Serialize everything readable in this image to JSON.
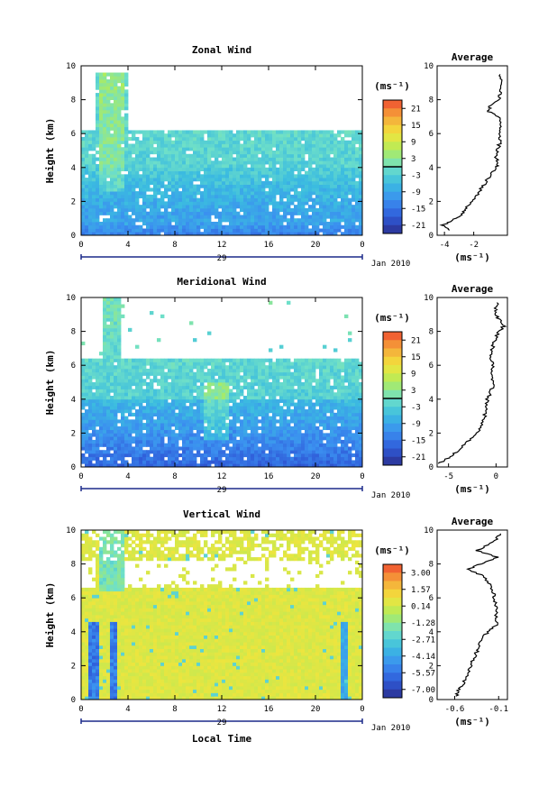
{
  "chart_data": [
    {
      "type": "heatmap",
      "title": "Zonal Wind",
      "ylabel": "Height (km)",
      "xlim": [
        0,
        24
      ],
      "ylim": [
        0,
        10
      ],
      "xticks": [
        "0",
        "4",
        "8",
        "12",
        "16",
        "20",
        "0"
      ],
      "yticks": [
        "0",
        "2",
        "4",
        "6",
        "8",
        "10"
      ],
      "date_day": "29",
      "date_label": "Jan 2010",
      "colorbar": {
        "unit": "(ms⁻¹)",
        "ticks": [
          "21",
          "15",
          "9",
          "3",
          "-3",
          "-9",
          "-15",
          "-21"
        ],
        "range": [
          -24,
          24
        ]
      },
      "profile": {
        "title": "Average",
        "xlabel": "(ms⁻¹)",
        "xticks": [
          "-4",
          "-2"
        ],
        "xlim": [
          -4.5,
          0.3
        ],
        "heights": [
          0.3,
          0.6,
          0.9,
          1.2,
          1.6,
          2.0,
          2.5,
          3.0,
          3.5,
          4.0,
          4.3,
          4.6,
          5.0,
          5.5,
          6.0,
          6.5,
          7.0,
          7.3,
          7.6,
          8.0,
          8.5,
          9.0,
          9.5
        ],
        "values": [
          -3.6,
          -4.1,
          -3.4,
          -2.9,
          -2.5,
          -2.1,
          -1.7,
          -1.3,
          -0.9,
          -0.5,
          -0.3,
          -0.5,
          -0.4,
          -0.2,
          -0.3,
          -0.1,
          -0.3,
          -1.0,
          -0.9,
          -0.3,
          -0.2,
          -0.1,
          -0.2
        ]
      }
    },
    {
      "type": "heatmap",
      "title": "Meridional Wind",
      "ylabel": "Height (km)",
      "xlim": [
        0,
        24
      ],
      "ylim": [
        0,
        10
      ],
      "xticks": [
        "0",
        "4",
        "8",
        "12",
        "16",
        "20",
        "0"
      ],
      "yticks": [
        "0",
        "2",
        "4",
        "6",
        "8",
        "10"
      ],
      "date_day": "29",
      "date_label": "Jan 2010",
      "colorbar": {
        "unit": "(ms⁻¹)",
        "ticks": [
          "21",
          "15",
          "9",
          "3",
          "-3",
          "-9",
          "-15",
          "-21"
        ],
        "range": [
          -24,
          24
        ]
      },
      "profile": {
        "title": "Average",
        "xlabel": "(ms⁻¹)",
        "xticks": [
          "-5",
          "0"
        ],
        "xlim": [
          -6.2,
          1.2
        ],
        "heights": [
          0.2,
          0.6,
          1.0,
          1.5,
          2.0,
          2.5,
          3.0,
          3.5,
          4.0,
          4.5,
          5.0,
          5.5,
          6.0,
          6.5,
          7.0,
          7.5,
          8.0,
          8.3,
          8.8,
          9.2,
          9.7
        ],
        "values": [
          -6.0,
          -4.8,
          -3.9,
          -3.0,
          -2.0,
          -1.5,
          -1.2,
          -1.0,
          -0.9,
          -0.5,
          -0.2,
          -0.6,
          -0.3,
          -0.7,
          -0.4,
          -0.1,
          0.3,
          0.8,
          0.2,
          -0.1,
          0.1
        ]
      }
    },
    {
      "type": "heatmap",
      "title": "Vertical Wind",
      "ylabel": "Height (km)",
      "xlabel": "Local Time",
      "xlim": [
        0,
        24
      ],
      "ylim": [
        0,
        10
      ],
      "xticks": [
        "0",
        "4",
        "8",
        "12",
        "16",
        "20",
        "0"
      ],
      "yticks": [
        "0",
        "2",
        "4",
        "6",
        "8",
        "10"
      ],
      "date_day": "29",
      "date_label": "Jan 2010",
      "colorbar": {
        "unit": "(ms⁻¹)",
        "ticks": [
          "3.00",
          "1.57",
          "0.14",
          "-1.28",
          "-2.71",
          "-4.14",
          "-5.57",
          "-7.00"
        ],
        "range": [
          -7.7,
          3.7
        ]
      },
      "profile": {
        "title": "Average",
        "xlabel": "(ms⁻¹)",
        "xticks": [
          "-0.6",
          "-0.1"
        ],
        "xlim": [
          -0.8,
          0.0
        ],
        "heights": [
          0.2,
          0.6,
          1.0,
          1.5,
          2.0,
          2.5,
          3.0,
          3.5,
          4.0,
          4.4,
          4.8,
          5.3,
          5.8,
          6.3,
          6.8,
          7.3,
          7.7,
          8.0,
          8.4,
          8.8,
          9.3,
          9.8
        ],
        "values": [
          -0.58,
          -0.55,
          -0.5,
          -0.45,
          -0.42,
          -0.38,
          -0.33,
          -0.3,
          -0.22,
          -0.12,
          -0.13,
          -0.12,
          -0.14,
          -0.16,
          -0.2,
          -0.28,
          -0.45,
          -0.3,
          -0.12,
          -0.35,
          -0.15,
          -0.08
        ]
      }
    }
  ]
}
